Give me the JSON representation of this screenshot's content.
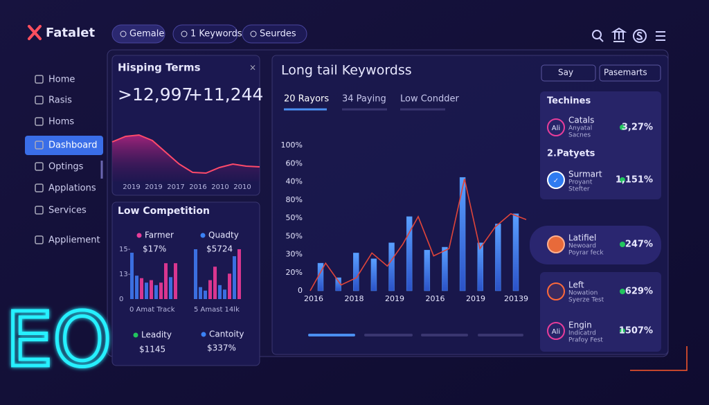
{
  "brand": "Fatalet",
  "nav_pills": [
    "Gemale",
    "1 Keywords",
    "Seurdes"
  ],
  "sidebar": [
    "Home",
    "Rasis",
    "Homs",
    "Dashboard",
    "Optings",
    "Applations",
    "Services",
    "Appliement"
  ],
  "hisping": {
    "title": "Hisping Terms",
    "stat1": ">12,997",
    "stat2": "+11,244",
    "x_labels": [
      "2019",
      "2019",
      "2017",
      "2016",
      "2010",
      "2010"
    ],
    "ylim": [
      0,
      100
    ],
    "values": [
      70,
      78,
      80,
      72,
      55,
      38,
      26,
      25,
      33,
      38,
      35,
      34
    ]
  },
  "low": {
    "title": "Low Competition",
    "legend_top": [
      {
        "name": "Farmer",
        "value": "$17%",
        "color": "#e83d9a"
      },
      {
        "name": "Quadty",
        "value": "$5724",
        "color": "#3b82f6"
      }
    ],
    "legend_bottom": [
      {
        "name": "Leadity",
        "value": "$1145",
        "color": "#22c55e"
      },
      {
        "name": "Cantoity",
        "value": "$337%",
        "color": "#3b82f6"
      }
    ],
    "y_labels": [
      "15-",
      "13-",
      "0"
    ],
    "x_labels": [
      "0  Amat Track",
      "5  Amast 14lk"
    ],
    "ylim": [
      0,
      100
    ],
    "left_bars": [
      93,
      47,
      42,
      33,
      38,
      28,
      33,
      72,
      44,
      72
    ],
    "left_colors": [
      "#3b6fe0",
      "#3b6fe0",
      "#d9368f",
      "#3b6fe0",
      "#d9368f",
      "#3b6fe0",
      "#d9368f",
      "#d9368f",
      "#3b6fe0",
      "#d9368f"
    ],
    "right_bars": [
      100,
      24,
      17,
      38,
      65,
      28,
      19,
      51,
      86,
      100
    ],
    "right_colors": [
      "#3b6fe0",
      "#3b6fe0",
      "#3b6fe0",
      "#d9368f",
      "#d9368f",
      "#3b6fe0",
      "#3b6fe0",
      "#d9368f",
      "#3b6fe0",
      "#d9368f"
    ]
  },
  "main_chart": {
    "title": "Long tail Keywordss",
    "tabs": [
      "20 Rayors",
      "34 Paying",
      "Low Condder"
    ],
    "search": "Say",
    "dropdown": "Pasemarts",
    "y_labels": [
      "100%",
      "60%",
      "40%",
      "80%",
      "50%",
      "50%",
      "30%",
      "20%",
      "0"
    ],
    "x_labels": [
      "2016",
      "2018",
      "2019",
      "2016",
      "2019",
      "20139"
    ],
    "ylim": [
      0,
      100
    ],
    "bars": [
      19,
      9,
      26,
      22,
      33,
      51,
      28,
      30,
      78,
      33,
      46,
      53
    ],
    "bar_color": "#4b8ff0",
    "line": [
      0,
      19,
      4,
      9,
      26,
      17,
      32,
      51,
      24,
      29,
      77,
      29,
      44,
      53,
      49
    ],
    "line_color": "#e0453a"
  },
  "right": {
    "heading": "Techines",
    "subheading": "2.Patyets",
    "items": [
      {
        "icon": "Ali",
        "title": "Catals",
        "sub1": "Anyatal",
        "sub2": "Sacnes",
        "value": "3,27%"
      },
      {
        "icon": "✓",
        "title": "Surmart",
        "sub1": "Proyant",
        "sub2": "Stefter",
        "value": "1,151%"
      },
      {
        "icon": "",
        "title": "Latifiel",
        "sub1": "Newoard",
        "sub2": "Poyrar feck",
        "value": "247%"
      },
      {
        "icon": "",
        "title": "Left",
        "sub1": "Nowation",
        "sub2": "Syerze Test",
        "value": "629%"
      },
      {
        "icon": "Ali",
        "title": "Engin",
        "sub1": "Indicatrd",
        "sub2": "Prafoy Fest",
        "value": "1507%"
      }
    ]
  },
  "logo_text": "EO"
}
